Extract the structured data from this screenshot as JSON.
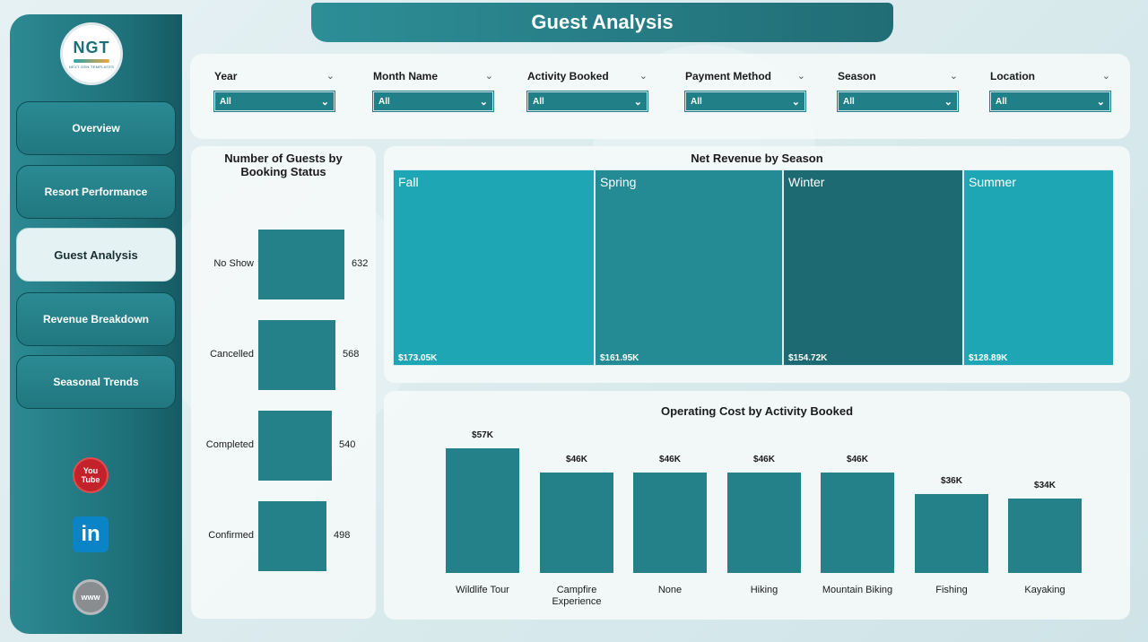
{
  "header": {
    "title": "Guest Analysis"
  },
  "sidebar": {
    "logo": {
      "mark": "NGT",
      "tagline": "NEXT GEN TEMPLATES"
    },
    "items": [
      {
        "label": "Overview",
        "active": false
      },
      {
        "label": "Resort Performance",
        "active": false
      },
      {
        "label": "Guest Analysis",
        "active": true
      },
      {
        "label": "Revenue Breakdown",
        "active": false
      },
      {
        "label": "Seasonal Trends",
        "active": false
      }
    ],
    "social": [
      {
        "name": "youtube-icon",
        "text_top": "You",
        "text_bottom": "Tube"
      },
      {
        "name": "linkedin-icon",
        "text": "in"
      },
      {
        "name": "website-icon",
        "text": "www"
      }
    ]
  },
  "filters": [
    {
      "label": "Year",
      "value": "All"
    },
    {
      "label": "Month Name",
      "value": "All"
    },
    {
      "label": "Activity Booked",
      "value": "All"
    },
    {
      "label": "Payment Method",
      "value": "All"
    },
    {
      "label": "Season",
      "value": "All"
    },
    {
      "label": "Location",
      "value": "All"
    }
  ],
  "colors": {
    "accent": "#24818a",
    "tile_light": "#1fa6b5",
    "tile_mid": "#248a94",
    "tile_dark": "#1e6a73"
  },
  "chart_data": [
    {
      "type": "bar",
      "orientation": "horizontal",
      "title": "Number of Guests by Booking Status",
      "categories": [
        "No Show",
        "Cancelled",
        "Completed",
        "Confirmed"
      ],
      "values": [
        632,
        568,
        540,
        498
      ],
      "value_labels": [
        "632",
        "568",
        "540",
        "498"
      ]
    },
    {
      "type": "treemap",
      "title": "Net Revenue by Season",
      "categories": [
        "Fall",
        "Spring",
        "Winter",
        "Summer"
      ],
      "values": [
        173.05,
        161.95,
        154.72,
        128.89
      ],
      "value_labels": [
        "$173.05K",
        "$161.95K",
        "$154.72K",
        "$128.89K"
      ],
      "unit": "K"
    },
    {
      "type": "bar",
      "title": "Operating Cost by Activity Booked",
      "categories": [
        "Wildlife Tour",
        "Campfire Experience",
        "None",
        "Hiking",
        "Mountain Biking",
        "Fishing",
        "Kayaking"
      ],
      "values": [
        57,
        46,
        46,
        46,
        46,
        36,
        34
      ],
      "value_labels": [
        "$57K",
        "$46K",
        "$46K",
        "$46K",
        "$46K",
        "$36K",
        "$34K"
      ],
      "unit": "K"
    }
  ]
}
